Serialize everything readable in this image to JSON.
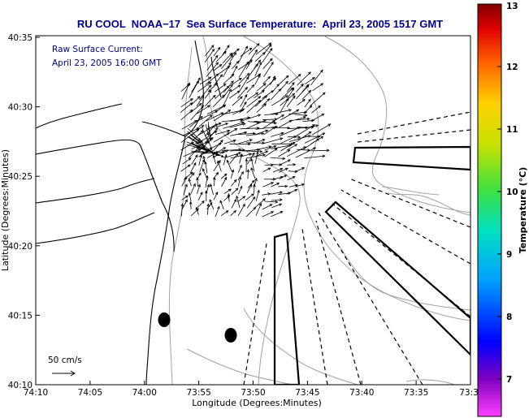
{
  "title": "RU COOL  NOAA−17  Sea Surface Temperature:  April 23, 2005 1517 GMT",
  "annotation": {
    "line1": "Raw Surface Current:",
    "line2": "April 23, 2005 16:00 GMT"
  },
  "scale_label": "50 cm/s",
  "axes": {
    "xlabel": "Longitude (Degrees:Minutes)",
    "ylabel": "Latitude (Degrees:Minutes)",
    "xticks": [
      "74:10",
      "74:05",
      "74:00",
      "73:55",
      "73:50",
      "73:45",
      "73:40",
      "73:35",
      "73:3"
    ],
    "yticks": [
      "40:35",
      "40:30",
      "40:25",
      "40:20",
      "40:15",
      "40:10"
    ]
  },
  "colorbar": {
    "label": "Temperature (°C)",
    "ticks": [
      "13",
      "12",
      "11",
      "10",
      "9",
      "8",
      "7"
    ],
    "vmin": 6.4,
    "vmax": 13
  },
  "colors": {
    "title": "#00008b",
    "annotation": "#00008b",
    "land": "#000000",
    "contour": "#a0a0a0",
    "vector": "#000000"
  }
}
